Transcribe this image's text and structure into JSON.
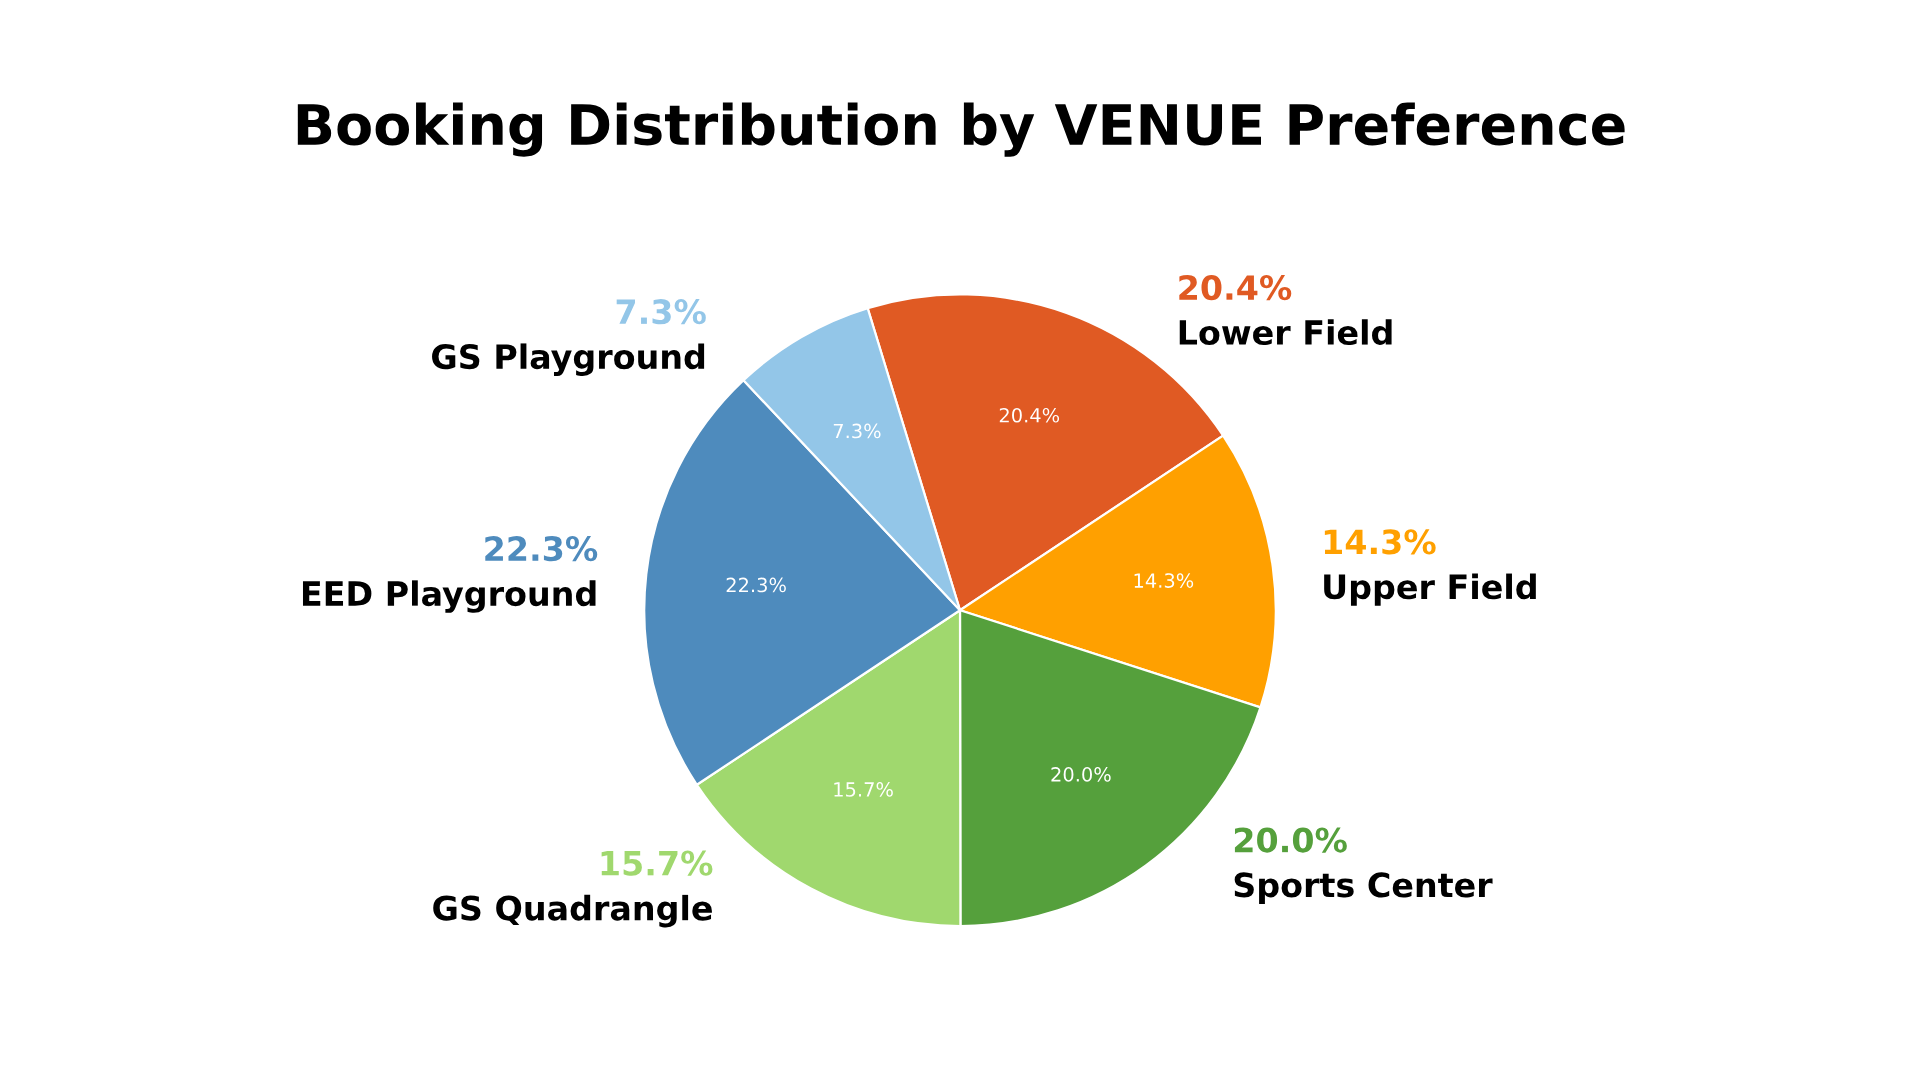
{
  "chart_data": {
    "type": "pie",
    "title": "Booking Distribution by VENUE Preference",
    "categories": [
      "Lower Field",
      "Upper Field",
      "Sports Center",
      "GS Quadrangle",
      "EED Playground",
      "GS Playground"
    ],
    "values": [
      20.4,
      14.3,
      20.0,
      15.7,
      22.3,
      7.3
    ],
    "colors": [
      "#e05a23",
      "#ffa000",
      "#55a03c",
      "#a0d86e",
      "#4e8bbd",
      "#93c6e8"
    ],
    "value_labels": [
      "20.4%",
      "14.3%",
      "20.0%",
      "15.7%",
      "22.3%",
      "7.3%"
    ]
  }
}
